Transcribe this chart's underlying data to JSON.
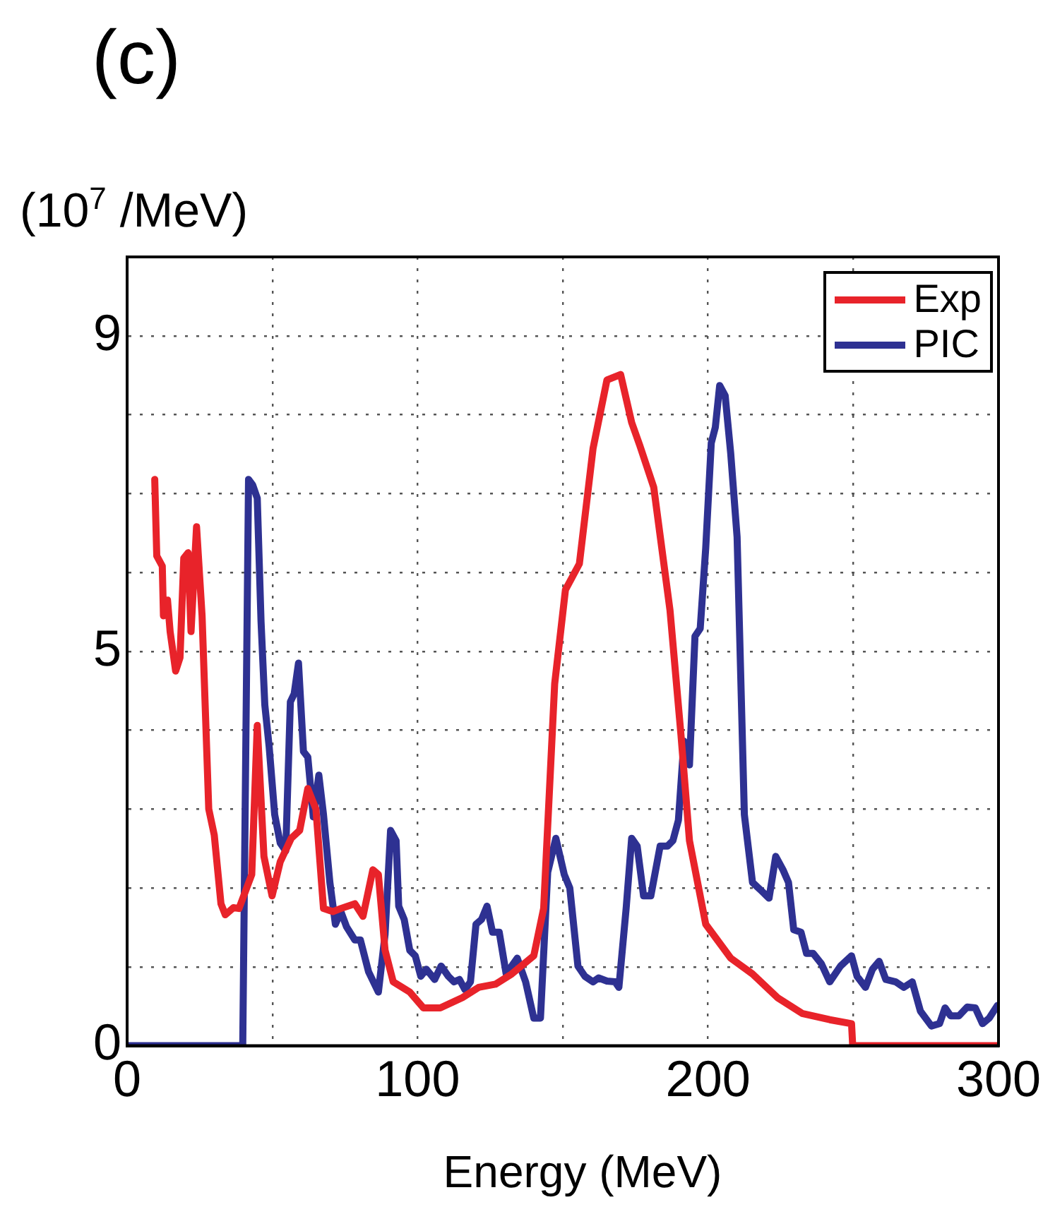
{
  "chart_data": {
    "type": "line",
    "title": "(c)",
    "ylabel": "(10$^{7}$ /MeV)",
    "xlabel": "Energy (MeV)",
    "xlim": [
      0,
      300
    ],
    "xticks": [
      0,
      {
        "value": 50,
        "label": null
      },
      100,
      {
        "value": 150,
        "label": null
      },
      200,
      {
        "value": 250,
        "label": null
      },
      300
    ],
    "ylim": [
      0,
      10
    ],
    "yticks": [
      0,
      {
        "value": 1,
        "label": null
      },
      {
        "value": 2,
        "label": null
      },
      {
        "value": 3,
        "label": null
      },
      {
        "value": 4,
        "label": null
      },
      5,
      {
        "value": 6,
        "label": null
      },
      {
        "value": 7,
        "label": null
      },
      {
        "value": 8,
        "label": null
      },
      9
    ],
    "grid": true,
    "legend": "top right",
    "marker": "none",
    "line_style": "solid",
    "series": [
      {
        "name": "Exp",
        "color": "#e8232a",
        "x": [
          9.5,
          10.2,
          12.1,
          12.5,
          13.9,
          14.8,
          16.7,
          18.2,
          19.5,
          21,
          22,
          23.9,
          25.8,
          28.1,
          30,
          32.3,
          33.8,
          36.6,
          38.5,
          42.9,
          44.8,
          47.1,
          49.9,
          52.7,
          56.5,
          59.4,
          62.2,
          65,
          67.6,
          70.8,
          73.6,
          78.4,
          81.2,
          84.6,
          86.5,
          88.8,
          91.6,
          97.3,
          102,
          107.8,
          115.4,
          121,
          126.8,
          132.4,
          140,
          143.4,
          147.2,
          150.9,
          155.7,
          160.4,
          165.2,
          169.9,
          173.7,
          176.5,
          181.3,
          186.9,
          190.7,
          193.6,
          199.2,
          207.8,
          215.3,
          223.9,
          232.4,
          241.9,
          249.4,
          249.8,
          300
        ],
        "values": [
          7.18,
          6.21,
          6.08,
          5.45,
          5.65,
          5.25,
          4.75,
          4.92,
          6.18,
          6.25,
          5.25,
          6.58,
          5.45,
          3.0,
          2.67,
          1.8,
          1.66,
          1.75,
          1.74,
          2.17,
          4.06,
          2.4,
          1.9,
          2.33,
          2.63,
          2.73,
          3.26,
          3.0,
          1.74,
          1.7,
          1.74,
          1.8,
          1.64,
          2.23,
          2.17,
          1.21,
          0.81,
          0.68,
          0.48,
          0.48,
          0.61,
          0.74,
          0.78,
          0.91,
          1.14,
          1.74,
          4.59,
          5.78,
          6.11,
          7.57,
          8.44,
          8.51,
          7.9,
          7.61,
          7.08,
          5.52,
          3.93,
          2.6,
          1.54,
          1.11,
          0.91,
          0.61,
          0.41,
          0.33,
          0.28,
          0,
          0
        ]
      },
      {
        "name": "PIC",
        "color": "#2e3192",
        "x": [
          0,
          39.8,
          41.8,
          43.2,
          44.8,
          46.1,
          47.4,
          48.9,
          50.8,
          52.7,
          54.6,
          56.2,
          57.5,
          59,
          60.7,
          62.2,
          64.1,
          66,
          67.6,
          69.8,
          71.7,
          73.6,
          75.5,
          78.4,
          80.3,
          83.1,
          86.5,
          88.8,
          90.7,
          92.6,
          93.5,
          95.4,
          97.3,
          99.2,
          101.1,
          103,
          105.9,
          108.1,
          110.6,
          112.5,
          114.4,
          116.3,
          118.2,
          120.1,
          122,
          123.9,
          125.8,
          128.1,
          130.5,
          132.4,
          134.3,
          137.2,
          140,
          142.3,
          144.8,
          147.6,
          150.5,
          152.4,
          155.2,
          157.6,
          160.4,
          162.3,
          165.2,
          168,
          169.3,
          171.8,
          173.7,
          175.6,
          177.8,
          180.3,
          183.5,
          186,
          187.9,
          189.8,
          191.7,
          193.6,
          195.5,
          197.3,
          199.2,
          201.1,
          202.5,
          204,
          205.9,
          207.8,
          210,
          212.5,
          215.3,
          218.2,
          221,
          223.3,
          225.8,
          227.7,
          229.5,
          232,
          233.9,
          236.2,
          239,
          241.9,
          245.6,
          249.4,
          251.3,
          254.2,
          256.6,
          258.9,
          261.2,
          264.6,
          267.4,
          270.3,
          273.1,
          276.9,
          279.7,
          281.6,
          283.5,
          286.4,
          289.2,
          292,
          294.5,
          296.8,
          299.6
        ],
        "values": [
          0,
          0,
          7.18,
          7.11,
          6.94,
          5.38,
          4.32,
          3.79,
          2.93,
          2.57,
          2.47,
          4.36,
          4.46,
          4.85,
          3.73,
          3.66,
          2.9,
          3.43,
          2.93,
          2.07,
          1.54,
          1.7,
          1.51,
          1.34,
          1.34,
          0.94,
          0.68,
          1.41,
          2.73,
          2.6,
          1.77,
          1.6,
          1.21,
          1.14,
          0.88,
          0.97,
          0.84,
          1.01,
          0.88,
          0.81,
          0.84,
          0.71,
          0.81,
          1.54,
          1.6,
          1.77,
          1.44,
          1.44,
          0.91,
          1.01,
          1.11,
          0.81,
          0.35,
          0.35,
          2.2,
          2.63,
          2.17,
          2.0,
          1.01,
          0.88,
          0.81,
          0.86,
          0.82,
          0.81,
          0.74,
          1.74,
          2.63,
          2.53,
          1.9,
          1.9,
          2.53,
          2.53,
          2.6,
          2.86,
          3.86,
          3.56,
          5.19,
          5.29,
          6.31,
          7.64,
          7.84,
          8.37,
          8.24,
          7.51,
          6.45,
          2.93,
          2.07,
          1.97,
          1.87,
          2.4,
          2.23,
          2.07,
          1.47,
          1.44,
          1.17,
          1.17,
          1.04,
          0.81,
          1.01,
          1.14,
          0.88,
          0.74,
          0.97,
          1.07,
          0.84,
          0.81,
          0.74,
          0.81,
          0.44,
          0.25,
          0.28,
          0.48,
          0.38,
          0.38,
          0.49,
          0.48,
          0.28,
          0.35,
          0.51
        ]
      }
    ]
  }
}
